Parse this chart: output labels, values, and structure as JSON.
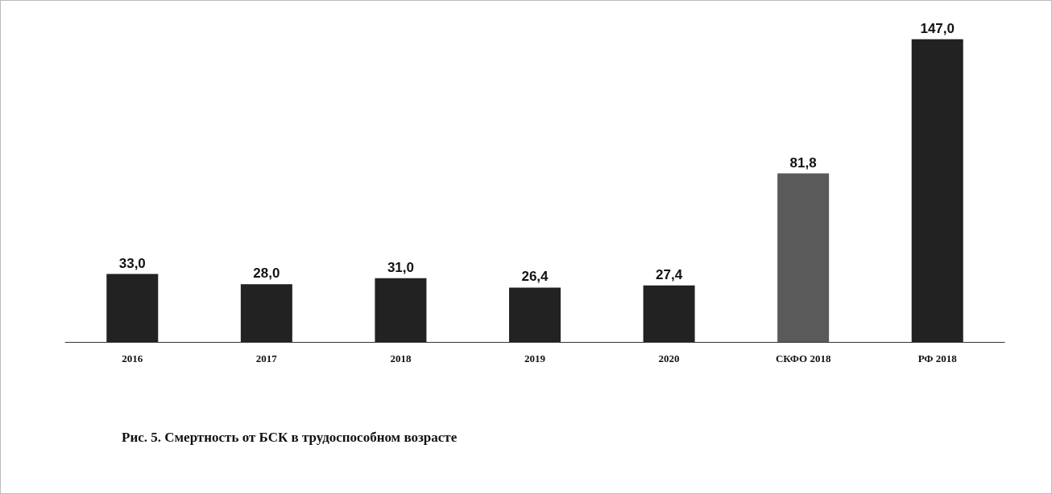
{
  "chart_data": {
    "type": "bar",
    "title": "Рис. 5. Смертность от БСК в трудоспособном возрасте",
    "categories": [
      "2016",
      "2017",
      "2018",
      "2019",
      "2020",
      "СКФО 2018",
      "РФ 2018"
    ],
    "values": [
      33.0,
      28.0,
      31.0,
      26.4,
      27.4,
      81.8,
      147.0
    ],
    "colors": [
      "#222222",
      "#222222",
      "#222222",
      "#222222",
      "#222222",
      "#5a5a5a",
      "#222222"
    ],
    "value_labels": [
      "33,0",
      "28,0",
      "31,0",
      "26,4",
      "27,4",
      "81,8",
      "147,0"
    ]
  }
}
